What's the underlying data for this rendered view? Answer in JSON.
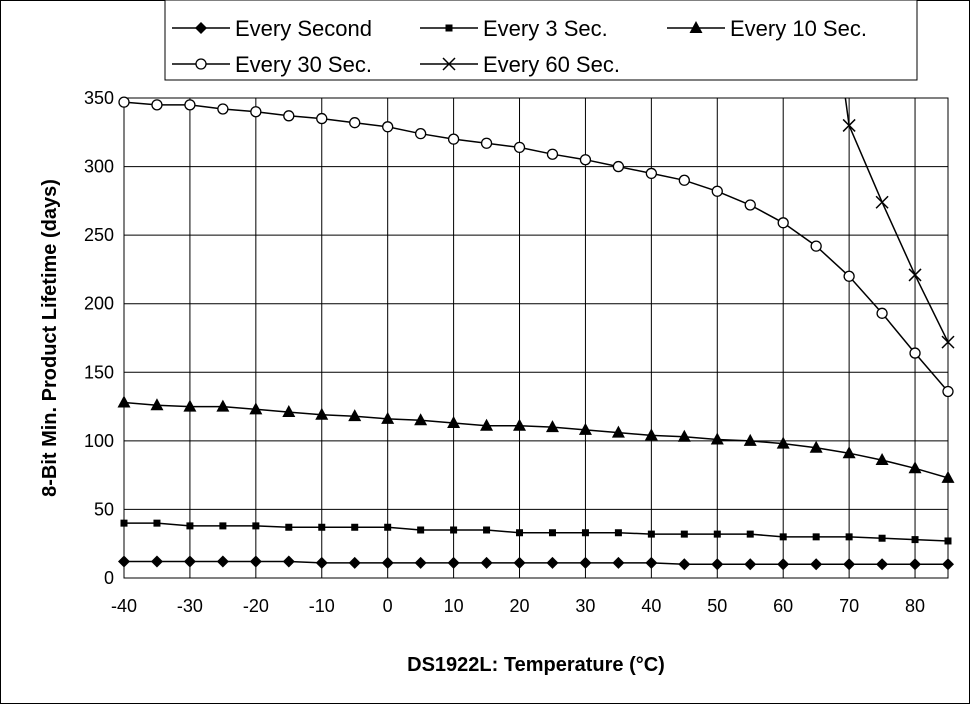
{
  "chart_data": {
    "type": "line",
    "xlabel": "DS1922L: Temperature (°C)",
    "ylabel": "8-Bit Min. Product Lifetime (days)",
    "xlim": [
      -40,
      85
    ],
    "ylim": [
      0,
      350
    ],
    "x_ticks": [
      -40,
      -30,
      -20,
      -10,
      0,
      10,
      20,
      30,
      40,
      50,
      60,
      70,
      80
    ],
    "y_ticks": [
      0,
      50,
      100,
      150,
      200,
      250,
      300,
      350
    ],
    "grid": true,
    "legend_position": "top",
    "x": [
      -40,
      -35,
      -30,
      -25,
      -20,
      -15,
      -10,
      -5,
      0,
      5,
      10,
      15,
      20,
      25,
      30,
      35,
      40,
      45,
      50,
      55,
      60,
      65,
      70,
      75,
      80,
      85
    ],
    "series": [
      {
        "name": "Every Second",
        "marker": "diamond",
        "values": [
          12,
          12,
          12,
          12,
          12,
          12,
          11,
          11,
          11,
          11,
          11,
          11,
          11,
          11,
          11,
          11,
          11,
          10,
          10,
          10,
          10,
          10,
          10,
          10,
          10,
          10
        ]
      },
      {
        "name": "Every 3 Sec.",
        "marker": "square",
        "values": [
          40,
          40,
          38,
          38,
          38,
          37,
          37,
          37,
          37,
          35,
          35,
          35,
          33,
          33,
          33,
          33,
          32,
          32,
          32,
          32,
          30,
          30,
          30,
          29,
          28,
          27
        ]
      },
      {
        "name": "Every 10 Sec.",
        "marker": "triangle",
        "values": [
          128,
          126,
          125,
          125,
          123,
          121,
          119,
          118,
          116,
          115,
          113,
          111,
          111,
          110,
          108,
          106,
          104,
          103,
          101,
          100,
          98,
          95,
          91,
          86,
          80,
          73
        ]
      },
      {
        "name": "Every 30 Sec.",
        "marker": "circle",
        "values": [
          347,
          345,
          345,
          342,
          340,
          337,
          335,
          332,
          329,
          324,
          320,
          317,
          314,
          309,
          305,
          300,
          295,
          290,
          282,
          272,
          259,
          242,
          220,
          193,
          164,
          136
        ]
      },
      {
        "name": "Every 60 Sec.",
        "marker": "x",
        "x": [
          68.5,
          70,
          75,
          80,
          85
        ],
        "values": [
          383,
          330,
          274,
          221,
          172
        ]
      }
    ]
  }
}
